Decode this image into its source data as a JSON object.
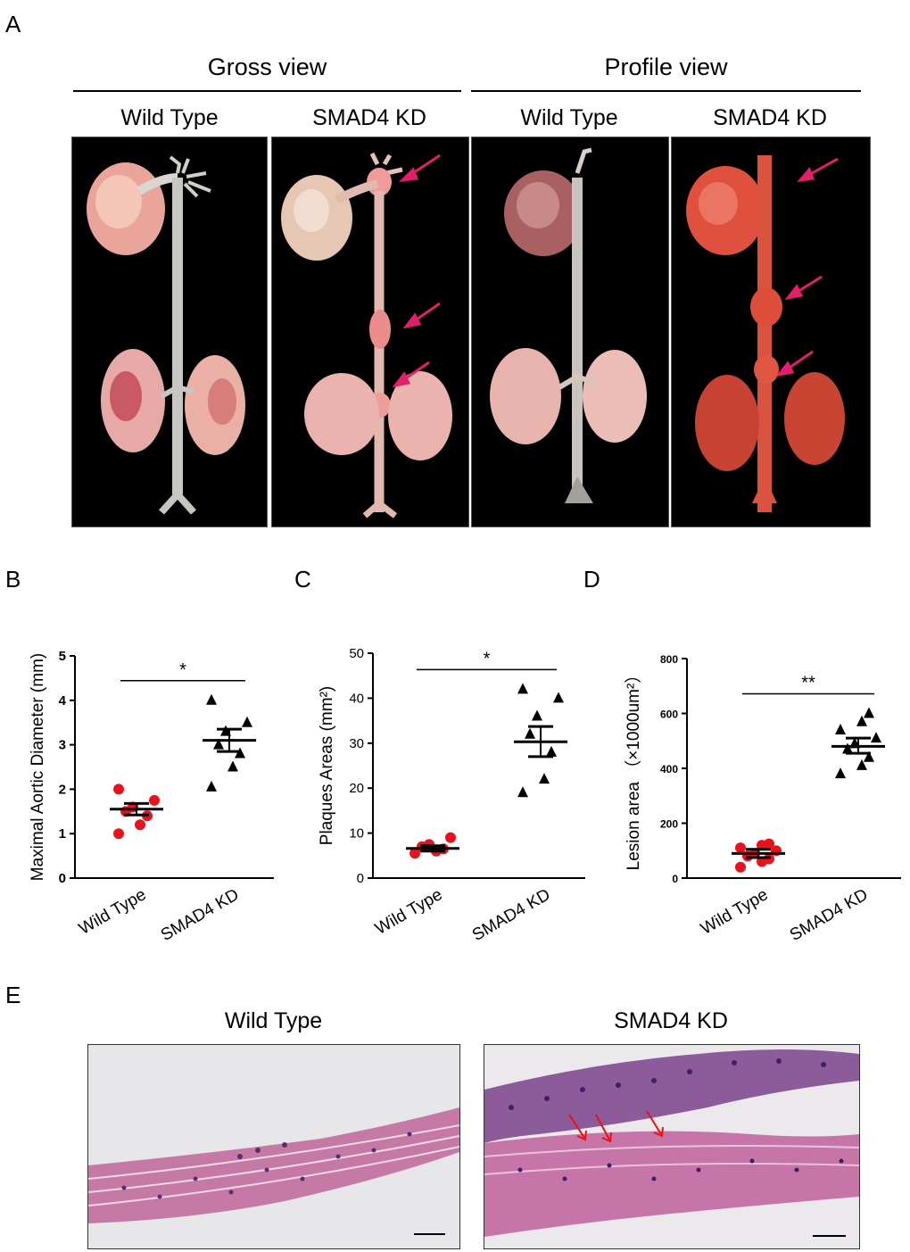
{
  "panel_a": {
    "letter": "A",
    "group_gross": "Gross  view",
    "group_profile": "Profile view",
    "labels": [
      "Wild Type",
      "SMAD4 KD",
      "Wild Type",
      "SMAD4 KD"
    ]
  },
  "panel_b": {
    "letter": "B"
  },
  "panel_c": {
    "letter": "C"
  },
  "panel_d": {
    "letter": "D"
  },
  "panel_e": {
    "letter": "E",
    "left_label": "Wild Type",
    "right_label": "SMAD4 KD"
  },
  "colors": {
    "wild_type": "#e8121c",
    "smad4_kd": "#000000",
    "arrow": "#e0206a",
    "histo_arrow": "#e8120f"
  },
  "chart_data": [
    {
      "type": "scatter",
      "panel": "B",
      "ylabel": "Maximal Aortic Diameter (mm)",
      "ylim": [
        0,
        5
      ],
      "yticks": [
        "0",
        "1",
        "2",
        "3",
        "4",
        "5"
      ],
      "categories": [
        "Wild Type",
        "SMAD4 KD"
      ],
      "significance": "*",
      "series": [
        {
          "name": "Wild Type",
          "marker": "circle",
          "values": [
            1.0,
            1.2,
            1.4,
            1.5,
            1.6,
            1.75,
            2.0
          ],
          "mean": 1.55,
          "sem_range": [
            1.42,
            1.68
          ]
        },
        {
          "name": "SMAD4 KD",
          "marker": "triangle",
          "values": [
            2.05,
            2.5,
            2.8,
            3.0,
            3.3,
            3.5,
            4.0
          ],
          "mean": 3.1,
          "sem_range": [
            2.85,
            3.35
          ]
        }
      ]
    },
    {
      "type": "scatter",
      "panel": "C",
      "ylabel": "Plaques Areas (mm²)",
      "ylim": [
        0,
        50
      ],
      "yticks": [
        "0",
        "10",
        "20",
        "30",
        "40",
        "50"
      ],
      "categories": [
        "Wild Type",
        "SMAD4 KD"
      ],
      "significance": "*",
      "series": [
        {
          "name": "Wild Type",
          "marker": "circle",
          "values": [
            5.5,
            6.0,
            6.5,
            7.0,
            7.5,
            9.0
          ],
          "mean": 6.6,
          "sem_range": [
            6.0,
            7.2
          ]
        },
        {
          "name": "SMAD4 KD",
          "marker": "triangle",
          "values": [
            19,
            22,
            28,
            32,
            36,
            40,
            42
          ],
          "mean": 30.3,
          "sem_range": [
            27.0,
            33.7
          ]
        }
      ]
    },
    {
      "type": "scatter",
      "panel": "D",
      "ylabel": "Lesion area （×1000um²）",
      "ylim": [
        0,
        800
      ],
      "yticks": [
        "0",
        "200",
        "400",
        "600",
        "800"
      ],
      "categories": [
        "Wild Type",
        "SMAD4 KD"
      ],
      "significance": "**",
      "series": [
        {
          "name": "Wild Type",
          "marker": "circle",
          "values": [
            40,
            60,
            70,
            80,
            90,
            100,
            110,
            120,
            125
          ],
          "mean": 90,
          "sem_range": [
            75,
            105
          ]
        },
        {
          "name": "SMAD4 KD",
          "marker": "triangle",
          "values": [
            380,
            410,
            440,
            470,
            490,
            510,
            540,
            570,
            600
          ],
          "mean": 480,
          "sem_range": [
            455,
            510
          ]
        }
      ]
    }
  ]
}
